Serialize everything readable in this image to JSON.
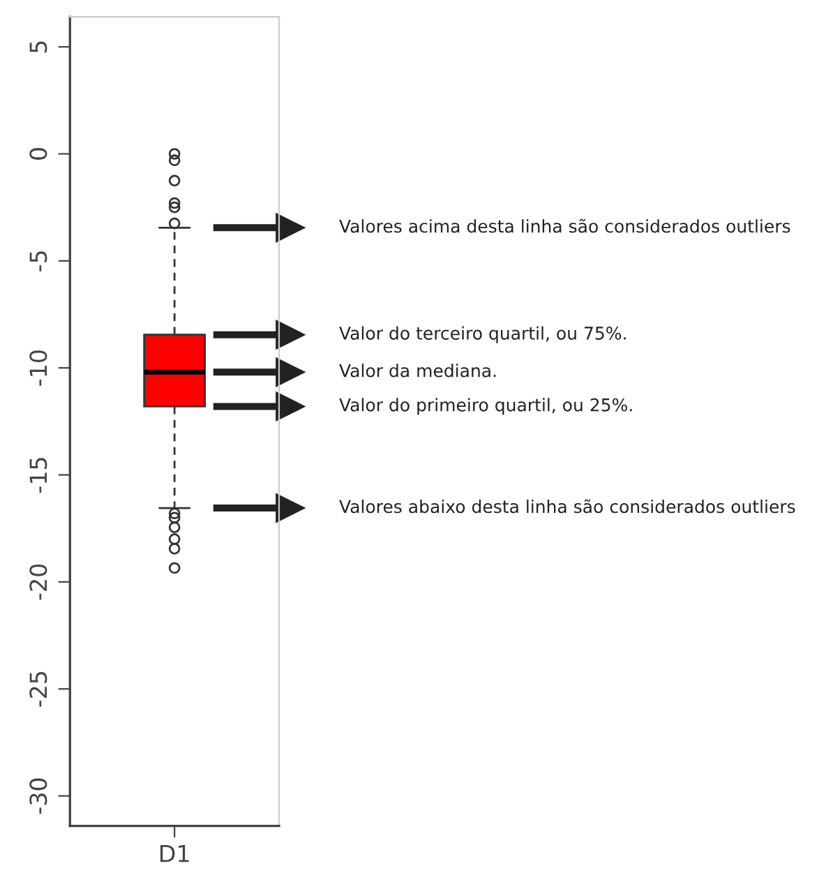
{
  "chart_data": {
    "type": "box",
    "categories": [
      "D1"
    ],
    "color": "#ff0000",
    "boxes": [
      {
        "low": -16.55,
        "q1": -11.8,
        "median": -10.2,
        "q3": -8.45,
        "high": -3.45,
        "outliers": [
          0.0,
          -0.3,
          -1.25,
          -2.3,
          -2.5,
          -3.25,
          -16.8,
          -17.0,
          -17.45,
          -18.0,
          -18.45,
          -19.35
        ]
      }
    ],
    "ylim": [
      -31.4,
      6.4
    ],
    "yticks": [
      -30,
      -25,
      -20,
      -15,
      -10,
      -5,
      0,
      5
    ],
    "grid": false,
    "legend": false,
    "annotations": [
      "Valores acima desta linha são considerados outliers",
      "Valor do terceiro quartil, ou 75%.",
      "Valor da mediana.",
      "Valor do primeiro quartil, ou 25%.",
      "Valores abaixo desta linha são considerados outliers"
    ]
  }
}
